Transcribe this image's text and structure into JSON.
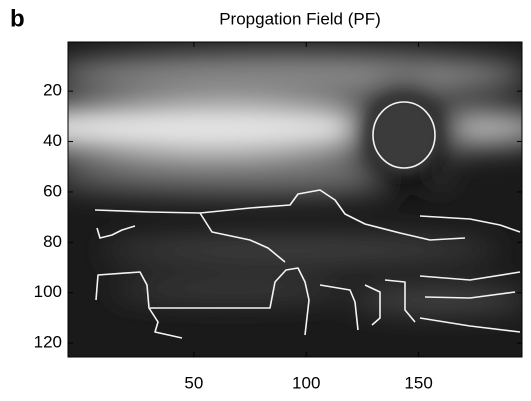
{
  "panel_label": "b",
  "chart_data": {
    "type": "image",
    "title": "Propgation Field (PF)",
    "xlim": [
      -6,
      196
    ],
    "ylim": [
      0.5,
      125.5
    ],
    "y_reversed": true,
    "xticks": [
      50,
      100,
      150
    ],
    "yticks": [
      20,
      40,
      60,
      80,
      100,
      120
    ]
  }
}
